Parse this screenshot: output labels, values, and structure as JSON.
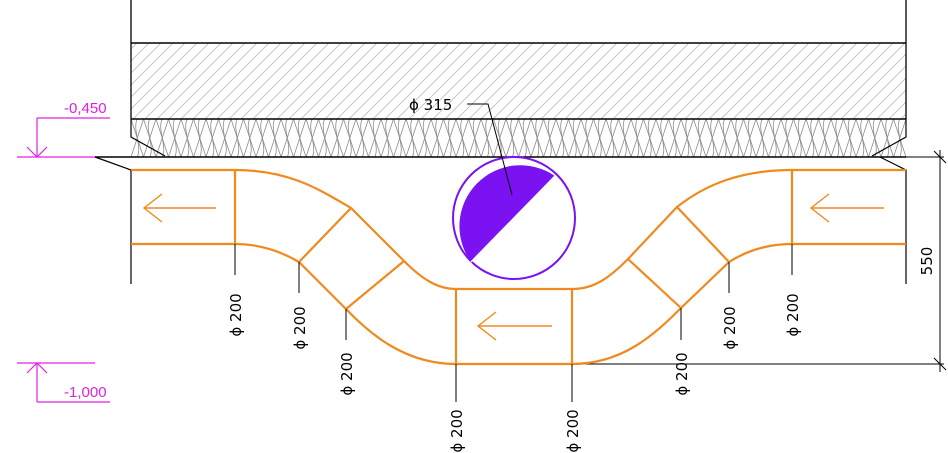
{
  "levels": {
    "upper": "-0,450",
    "lower": "-1,000"
  },
  "pipe_label": "ϕ 315",
  "dimension_height": "550",
  "duct_labels": [
    "ϕ 200",
    "ϕ 200",
    "ϕ 200",
    "ϕ 200",
    "ϕ 200",
    "ϕ 200",
    "ϕ 200",
    "ϕ 200"
  ],
  "colors": {
    "duct": "#f08a1e",
    "pipe": "#7a12f2",
    "level_marker": "#e020e0",
    "line": "#000000"
  },
  "icons": {
    "flow_arrow": "arrow-left-icon",
    "level_marker": "level-marker-icon"
  }
}
